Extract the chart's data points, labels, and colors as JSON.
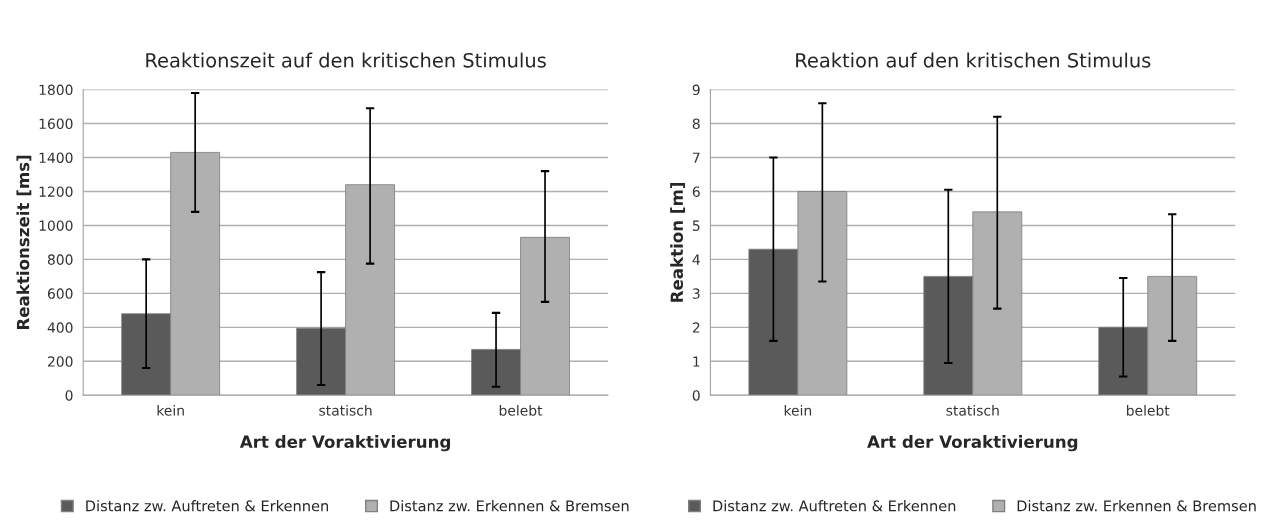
{
  "chart_data": [
    {
      "type": "bar",
      "title": "Reaktionszeit auf den kritischen Stimulus",
      "xlabel": "Art der Voraktivierung",
      "ylabel": "Reaktionszeit [ms]",
      "categories": [
        "kein",
        "statisch",
        "belebt"
      ],
      "series": [
        {
          "name": "Distanz zw. Auftreten & Erkennen",
          "color": "#5a5a5a",
          "values": [
            480,
            395,
            270
          ],
          "errors": [
            [
              160,
              800
            ],
            [
              60,
              725
            ],
            [
              50,
              485
            ]
          ]
        },
        {
          "name": "Distanz zw. Erkennen & Bremsen",
          "color": "#b0b0b0",
          "values": [
            1430,
            1240,
            930
          ],
          "errors": [
            [
              1080,
              1780
            ],
            [
              775,
              1690
            ],
            [
              550,
              1320
            ]
          ]
        }
      ],
      "ylim": [
        0,
        1800
      ],
      "yticks": [
        0,
        200,
        400,
        600,
        800,
        1000,
        1200,
        1400,
        1600,
        1800
      ],
      "grid": "y",
      "legend": "bottom"
    },
    {
      "type": "bar",
      "title": "Reaktion auf den kritischen Stimulus",
      "xlabel": "Art der Voraktivierung",
      "ylabel": "Reaktion [m]",
      "categories": [
        "kein",
        "statisch",
        "belebt"
      ],
      "series": [
        {
          "name": "Distanz zw. Auftreten & Erkennen",
          "color": "#5a5a5a",
          "values": [
            4.3,
            3.5,
            2.0
          ],
          "errors": [
            [
              1.6,
              7.0
            ],
            [
              0.95,
              6.05
            ],
            [
              0.55,
              3.45
            ]
          ]
        },
        {
          "name": "Distanz zw. Erkennen & Bremsen",
          "color": "#b0b0b0",
          "values": [
            6.0,
            5.4,
            3.5
          ],
          "errors": [
            [
              3.35,
              8.6
            ],
            [
              2.55,
              8.2
            ],
            [
              1.6,
              5.33
            ]
          ]
        }
      ],
      "ylim": [
        0,
        9
      ],
      "yticks": [
        0,
        1,
        2,
        3,
        4,
        5,
        6,
        7,
        8,
        9
      ],
      "grid": "y",
      "legend": "bottom"
    }
  ]
}
